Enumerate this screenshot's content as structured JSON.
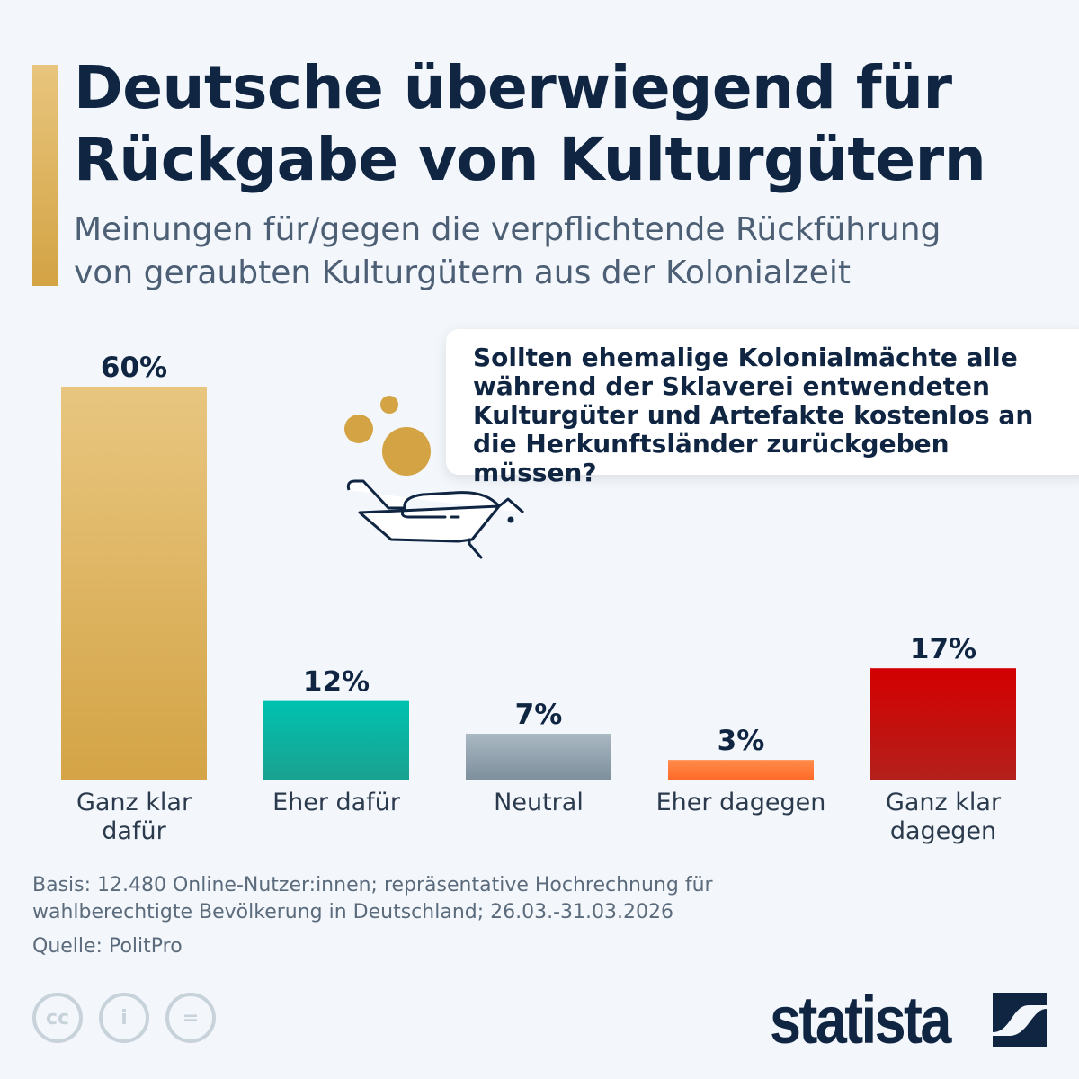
{
  "header": {
    "title_line1": "Deutsche überwiegend für",
    "title_line2": "Rückgabe von Kulturgütern",
    "subtitle_line1": "Meinungen für/gegen die verpflichtende Rückführung",
    "subtitle_line2": "von geraubten Kulturgütern aus der Kolonialzeit"
  },
  "question": "Sollten ehemalige Kolonialmächte alle während der Sklaverei entwendeten Kulturgüter und Artefakte kostenlos an die Herkunftsländer zurückgeben müssen?",
  "chart_data": {
    "type": "bar",
    "categories": [
      "Ganz klar dafür",
      "Eher dafür",
      "Neutral",
      "Eher dagegen",
      "Ganz klar dagegen"
    ],
    "values": [
      60,
      12,
      7,
      3,
      17
    ],
    "labels": [
      "60%",
      "12%",
      "7%",
      "3%",
      "17%"
    ],
    "unit": "%",
    "colors": [
      [
        "#e8c680",
        "#d4a446"
      ],
      [
        "#00c2b0",
        "#19a28f"
      ],
      [
        "#a9b8c1",
        "#7e8f9d"
      ],
      [
        "#ff8c4c",
        "#ff6a28"
      ],
      [
        "#d30000",
        "#b4201b"
      ]
    ],
    "ylim": [
      0,
      60
    ],
    "grid": false
  },
  "footer": {
    "basis_line1": "Basis: 12.480 Online-Nutzer:innen; repräsentative Hochrechnung für",
    "basis_line2": "wahlberechtigte Bevölkerung in Deutschland; 26.03.-31.03.2026",
    "source": "Quelle: PolitPro",
    "license_icons": [
      "cc-icon",
      "attribution-icon",
      "no-derivatives-icon"
    ],
    "logo": "statista"
  }
}
